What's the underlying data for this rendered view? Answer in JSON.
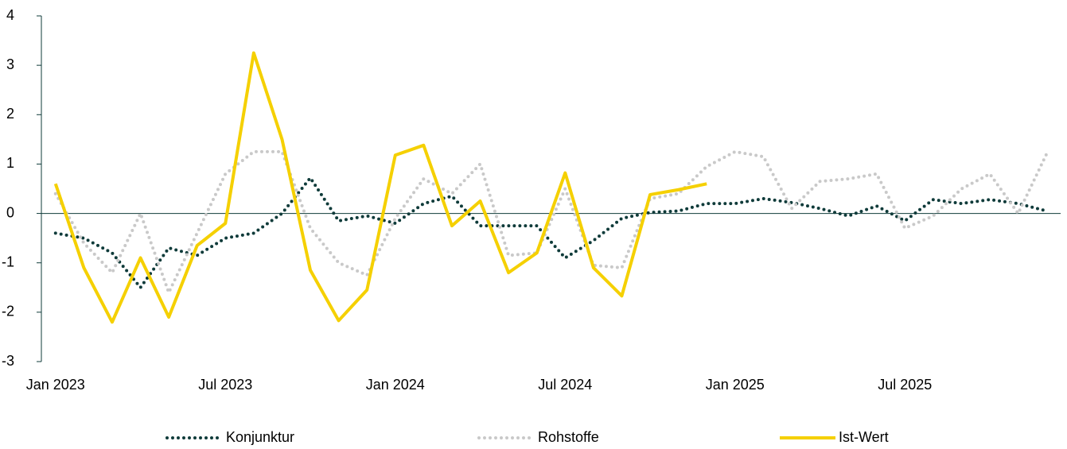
{
  "chart_data": {
    "type": "line",
    "categories": [
      "Jan 2023",
      null,
      null,
      null,
      null,
      null,
      "Jul 2023",
      null,
      null,
      null,
      null,
      null,
      "Jan 2024",
      null,
      null,
      null,
      null,
      null,
      "Jul 2024",
      null,
      null,
      null,
      null,
      null,
      "Jan 2025",
      null,
      null,
      null,
      null,
      null,
      "Jul 2025",
      null,
      null,
      null,
      null,
      null
    ],
    "series": [
      {
        "name": "Konjunktur",
        "color": "#0f3b3a",
        "style": "dotted",
        "values": [
          -0.4,
          -0.5,
          -0.8,
          -1.5,
          -0.7,
          -0.85,
          -0.5,
          -0.4,
          0.0,
          0.72,
          -0.15,
          -0.05,
          -0.2,
          0.2,
          0.35,
          -0.25,
          -0.25,
          -0.25,
          -0.9,
          -0.55,
          -0.1,
          0.02,
          0.05,
          0.2,
          0.2,
          0.3,
          0.22,
          0.1,
          -0.05,
          0.15,
          -0.15,
          0.28,
          0.2,
          0.28,
          0.2,
          0.05
        ]
      },
      {
        "name": "Rohstoffe",
        "color": "#c9c9c9",
        "style": "dotted",
        "values": [
          0.4,
          -0.6,
          -1.2,
          0.0,
          -1.6,
          -0.4,
          0.8,
          1.25,
          1.25,
          -0.3,
          -1.0,
          -1.25,
          -0.1,
          0.7,
          0.4,
          1.0,
          -0.85,
          -0.8,
          0.5,
          -1.05,
          -1.1,
          0.3,
          0.4,
          0.95,
          1.25,
          1.15,
          0.1,
          0.65,
          0.7,
          0.8,
          -0.3,
          -0.05,
          0.5,
          0.8,
          0.0,
          1.2
        ]
      },
      {
        "name": "Ist-Wert",
        "color": "#f5d000",
        "style": "solid",
        "values": [
          0.6,
          -1.1,
          -2.2,
          -0.9,
          -2.1,
          -0.65,
          -0.2,
          3.25,
          1.5,
          -1.15,
          -2.17,
          -1.55,
          1.18,
          1.38,
          -0.25,
          0.25,
          -1.2,
          -0.8,
          0.82,
          -1.1,
          -1.67,
          0.38,
          0.48,
          0.6,
          null,
          null,
          null,
          null,
          null,
          null,
          null,
          null,
          null,
          null,
          null,
          null
        ]
      }
    ],
    "ylim": [
      -3,
      4
    ],
    "yticks": [
      -3,
      -2,
      -1,
      0,
      1,
      2,
      3,
      4
    ],
    "grid": false,
    "legend": "bottom"
  }
}
